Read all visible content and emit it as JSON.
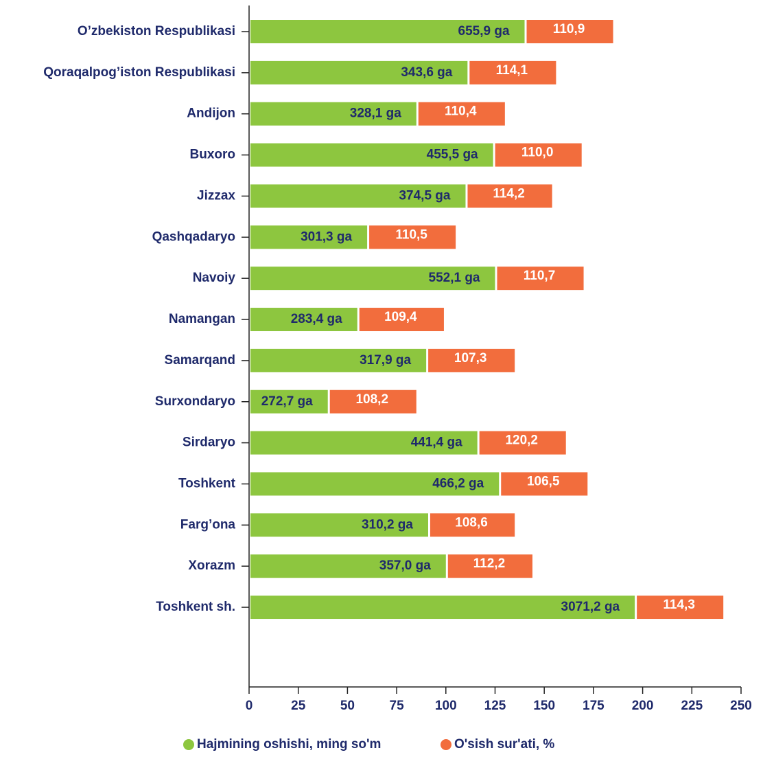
{
  "chart_data": {
    "type": "stacked-barh",
    "categories": [
      "O’zbekiston Respublikasi",
      "Qoraqalpog’iston Respublikasi",
      "Andijon",
      "Buxoro",
      "Jizzax",
      "Qashqadaryo",
      "Navoiy",
      "Namangan",
      "Samarqand",
      "Surxondaryo",
      "Sirdaryo",
      "Toshkent",
      "Farg’ona",
      "Xorazm",
      "Toshkent sh."
    ],
    "series": [
      {
        "name": "Hajmining oshishi, ming so'm",
        "color": "#8dc63f",
        "values": [
          140,
          111,
          85,
          124,
          110,
          60,
          125,
          55,
          90,
          40,
          116,
          127,
          91,
          100,
          196
        ],
        "labels": [
          "655,9 ga",
          "343,6 ga",
          "328,1 ga",
          "455,5 ga",
          "374,5 ga",
          "301,3 ga",
          "552,1 ga",
          "283,4 ga",
          "317,9 ga",
          "272,7 ga",
          "441,4 ga",
          "466,2 ga",
          "310,2 ga",
          "357,0 ga",
          "3071,2 ga"
        ]
      },
      {
        "name": "O'sish sur'ati, %",
        "color": "#f26d3d",
        "values": [
          45,
          45,
          45,
          45,
          44,
          45,
          45,
          44,
          45,
          45,
          45,
          45,
          44,
          44,
          45
        ],
        "labels": [
          "110,9",
          "114,1",
          "110,4",
          "110,0",
          "114,2",
          "110,5",
          "110,7",
          "109,4",
          "107,3",
          "108,2",
          "120,2",
          "106,5",
          "108,6",
          "112,2",
          "114,3"
        ]
      }
    ],
    "xlim": [
      0,
      250
    ],
    "xticks": [
      0,
      25,
      50,
      75,
      100,
      125,
      150,
      175,
      200,
      225,
      250
    ]
  }
}
